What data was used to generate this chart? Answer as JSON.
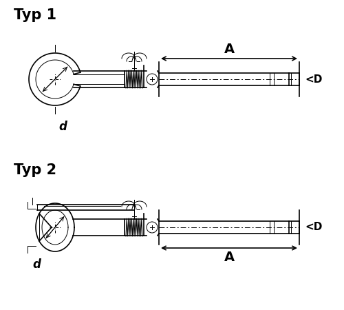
{
  "bg_color": "#ffffff",
  "line_color": "#000000",
  "title1": "Typ 1",
  "title2": "Typ 2",
  "label_A": "A",
  "label_D": "<D",
  "label_d": "d",
  "title_fontsize": 15,
  "label_fontsize": 12
}
